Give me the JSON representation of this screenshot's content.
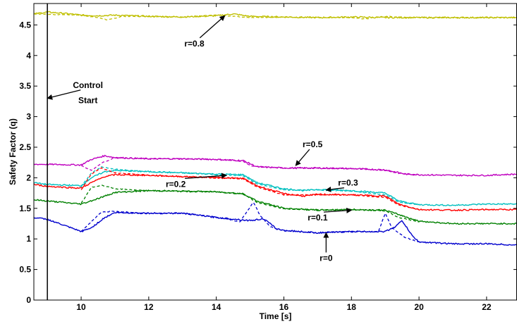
{
  "chart_data": {
    "type": "line",
    "title": "",
    "xlabel": "Time [s]",
    "ylabel": "Safety Factor (q)",
    "xlim": [
      8.6,
      22.9
    ],
    "ylim": [
      0,
      4.85
    ],
    "xticks": [
      10,
      12,
      14,
      16,
      18,
      20,
      22
    ],
    "yticks": [
      0,
      0.5,
      1,
      1.5,
      2,
      2.5,
      3,
      3.5,
      4,
      4.5
    ],
    "ytick_labels": [
      "0",
      "0.5",
      "1",
      "1.5",
      "2",
      "2.5",
      "3",
      "3.5",
      "4",
      "4.5"
    ],
    "grid": false,
    "legend": "none",
    "series": [
      {
        "label": "r=0.8",
        "color": "#bfbf00",
        "solid": [
          [
            8.6,
            4.68
          ],
          [
            9,
            4.71
          ],
          [
            9.5,
            4.69
          ],
          [
            10,
            4.66
          ],
          [
            10.5,
            4.65
          ],
          [
            11,
            4.66
          ],
          [
            12,
            4.64
          ],
          [
            13,
            4.63
          ],
          [
            14,
            4.65
          ],
          [
            14.5,
            4.68
          ],
          [
            15,
            4.64
          ],
          [
            16,
            4.63
          ],
          [
            17,
            4.62
          ],
          [
            18,
            4.63
          ],
          [
            19,
            4.62
          ],
          [
            20,
            4.62
          ],
          [
            21,
            4.62
          ],
          [
            22,
            4.62
          ],
          [
            22.9,
            4.62
          ]
        ],
        "dashed": [
          [
            8.6,
            4.68
          ],
          [
            10,
            4.66
          ],
          [
            10.5,
            4.62
          ],
          [
            10.8,
            4.58
          ],
          [
            11.2,
            4.64
          ],
          [
            12,
            4.64
          ],
          [
            13,
            4.63
          ],
          [
            14,
            4.66
          ],
          [
            14.6,
            4.64
          ],
          [
            15,
            4.62
          ],
          [
            16,
            4.63
          ],
          [
            17,
            4.62
          ],
          [
            18,
            4.62
          ],
          [
            18.4,
            4.6
          ],
          [
            19,
            4.64
          ],
          [
            20,
            4.62
          ],
          [
            22.9,
            4.62
          ]
        ]
      },
      {
        "label": "r=0.5",
        "color": "#bf00bf",
        "solid": [
          [
            8.6,
            2.22
          ],
          [
            9,
            2.22
          ],
          [
            10,
            2.21
          ],
          [
            10.3,
            2.3
          ],
          [
            10.7,
            2.36
          ],
          [
            11,
            2.33
          ],
          [
            12,
            2.31
          ],
          [
            13,
            2.31
          ],
          [
            14,
            2.3
          ],
          [
            14.8,
            2.28
          ],
          [
            15.2,
            2.18
          ],
          [
            16,
            2.16
          ],
          [
            17,
            2.16
          ],
          [
            18,
            2.15
          ],
          [
            19,
            2.13
          ],
          [
            19.6,
            2.06
          ],
          [
            20,
            2.05
          ],
          [
            21,
            2.04
          ],
          [
            22,
            2.04
          ],
          [
            22.9,
            2.06
          ]
        ],
        "dashed": [
          [
            10,
            2.2
          ],
          [
            10.3,
            2.12
          ],
          [
            10.6,
            2.24
          ],
          [
            11,
            2.33
          ],
          [
            12,
            2.31
          ],
          [
            13,
            2.31
          ],
          [
            14,
            2.3
          ],
          [
            14.8,
            2.27
          ],
          [
            15,
            2.2
          ],
          [
            15.2,
            2.18
          ],
          [
            16,
            2.16
          ],
          [
            18,
            2.15
          ],
          [
            19,
            2.12
          ],
          [
            19.4,
            2.07
          ],
          [
            20,
            2.05
          ]
        ]
      },
      {
        "label": "r=0.3",
        "color": "#00bfbf",
        "solid": [
          [
            8.6,
            1.92
          ],
          [
            9,
            1.89
          ],
          [
            10,
            1.87
          ],
          [
            10.3,
            2.0
          ],
          [
            10.7,
            2.1
          ],
          [
            11,
            2.12
          ],
          [
            12,
            2.1
          ],
          [
            13,
            2.08
          ],
          [
            14,
            2.06
          ],
          [
            14.8,
            2.05
          ],
          [
            15.2,
            1.92
          ],
          [
            16,
            1.82
          ],
          [
            16.6,
            1.79
          ],
          [
            17,
            1.81
          ],
          [
            18,
            1.79
          ],
          [
            19,
            1.75
          ],
          [
            19.4,
            1.62
          ],
          [
            20,
            1.56
          ],
          [
            21,
            1.55
          ],
          [
            22,
            1.57
          ],
          [
            22.9,
            1.57
          ]
        ],
        "dashed": [
          [
            10,
            1.85
          ],
          [
            10.3,
            2.08
          ],
          [
            10.6,
            2.18
          ],
          [
            11,
            2.14
          ],
          [
            12,
            2.1
          ],
          [
            13,
            2.08
          ],
          [
            14,
            2.05
          ],
          [
            14.8,
            2.03
          ],
          [
            15.2,
            1.9
          ],
          [
            16,
            1.8
          ],
          [
            17,
            1.8
          ],
          [
            18,
            1.78
          ],
          [
            19,
            1.72
          ],
          [
            19.4,
            1.6
          ],
          [
            20,
            1.56
          ]
        ]
      },
      {
        "label": "r=0.2",
        "color": "#ff0000",
        "solid": [
          [
            8.6,
            1.89
          ],
          [
            9,
            1.86
          ],
          [
            10,
            1.83
          ],
          [
            10.3,
            1.92
          ],
          [
            10.7,
            2.02
          ],
          [
            11,
            2.05
          ],
          [
            12,
            2.04
          ],
          [
            13,
            2.02
          ],
          [
            14,
            2.0
          ],
          [
            14.8,
            1.99
          ],
          [
            15.2,
            1.87
          ],
          [
            16,
            1.74
          ],
          [
            16.6,
            1.7
          ],
          [
            17,
            1.73
          ],
          [
            18,
            1.72
          ],
          [
            19,
            1.7
          ],
          [
            19.4,
            1.57
          ],
          [
            20,
            1.48
          ],
          [
            21,
            1.47
          ],
          [
            22,
            1.48
          ],
          [
            22.9,
            1.48
          ]
        ],
        "dashed": [
          [
            10,
            1.8
          ],
          [
            10.3,
            2.06
          ],
          [
            10.6,
            2.16
          ],
          [
            11,
            2.08
          ],
          [
            12,
            2.04
          ],
          [
            13,
            2.02
          ],
          [
            14,
            2.01
          ],
          [
            14.8,
            1.98
          ],
          [
            15.2,
            1.85
          ],
          [
            16,
            1.72
          ],
          [
            17,
            1.72
          ],
          [
            18,
            1.72
          ],
          [
            19,
            1.68
          ],
          [
            19.4,
            1.55
          ],
          [
            20,
            1.48
          ]
        ]
      },
      {
        "label": "r=0.1",
        "color": "#008000",
        "solid": [
          [
            8.6,
            1.64
          ],
          [
            9,
            1.62
          ],
          [
            10,
            1.57
          ],
          [
            10.5,
            1.66
          ],
          [
            11,
            1.76
          ],
          [
            12,
            1.79
          ],
          [
            13,
            1.78
          ],
          [
            14,
            1.77
          ],
          [
            14.8,
            1.74
          ],
          [
            15.2,
            1.62
          ],
          [
            16,
            1.5
          ],
          [
            17,
            1.47
          ],
          [
            18,
            1.48
          ],
          [
            19,
            1.47
          ],
          [
            19.5,
            1.38
          ],
          [
            20,
            1.29
          ],
          [
            21,
            1.25
          ],
          [
            22,
            1.25
          ],
          [
            22.9,
            1.25
          ]
        ],
        "dashed": [
          [
            10,
            1.58
          ],
          [
            10.3,
            1.84
          ],
          [
            10.6,
            1.88
          ],
          [
            11,
            1.82
          ],
          [
            12,
            1.79
          ],
          [
            13,
            1.78
          ],
          [
            14,
            1.77
          ],
          [
            14.8,
            1.73
          ],
          [
            15.2,
            1.6
          ],
          [
            16,
            1.49
          ],
          [
            17,
            1.48
          ],
          [
            18,
            1.48
          ],
          [
            19,
            1.46
          ],
          [
            19.4,
            1.35
          ],
          [
            20,
            1.28
          ]
        ]
      },
      {
        "label": "r=0",
        "color": "#0000cd",
        "solid": [
          [
            8.6,
            1.35
          ],
          [
            9,
            1.32
          ],
          [
            9.5,
            1.22
          ],
          [
            10,
            1.12
          ],
          [
            10.3,
            1.18
          ],
          [
            10.7,
            1.35
          ],
          [
            11,
            1.43
          ],
          [
            12,
            1.42
          ],
          [
            13,
            1.42
          ],
          [
            14,
            1.35
          ],
          [
            15,
            1.3
          ],
          [
            15.4,
            1.33
          ],
          [
            15.8,
            1.16
          ],
          [
            16,
            1.14
          ],
          [
            17,
            1.1
          ],
          [
            18,
            1.12
          ],
          [
            19,
            1.12
          ],
          [
            19.3,
            1.2
          ],
          [
            19.5,
            1.3
          ],
          [
            19.8,
            1.05
          ],
          [
            20,
            0.95
          ],
          [
            21,
            0.92
          ],
          [
            22,
            0.92
          ],
          [
            22.9,
            0.9
          ]
        ],
        "dashed": [
          [
            10,
            1.12
          ],
          [
            10.3,
            1.28
          ],
          [
            10.6,
            1.44
          ],
          [
            11,
            1.45
          ],
          [
            12,
            1.42
          ],
          [
            13,
            1.42
          ],
          [
            14,
            1.36
          ],
          [
            14.7,
            1.28
          ],
          [
            15.1,
            1.6
          ],
          [
            15.3,
            1.38
          ],
          [
            15.6,
            1.2
          ],
          [
            16,
            1.13
          ],
          [
            17,
            1.1
          ],
          [
            18,
            1.12
          ],
          [
            18.8,
            1.12
          ],
          [
            19.0,
            1.42
          ],
          [
            19.2,
            1.18
          ],
          [
            19.6,
            1.02
          ],
          [
            20,
            0.95
          ]
        ]
      }
    ],
    "annotations": [
      {
        "text": "r=0.8",
        "point": [
          14.25,
          4.65
        ],
        "text_pos": [
          13.35,
          4.15
        ]
      },
      {
        "text": "r=0.5",
        "point": [
          16.35,
          2.2
        ],
        "text_pos": [
          16.85,
          2.5
        ]
      },
      {
        "text": "r=0.3",
        "point": [
          17.25,
          1.8
        ],
        "text_pos": [
          17.9,
          1.87
        ]
      },
      {
        "text": "r=0.2",
        "point": [
          14.3,
          2.04
        ],
        "text_pos": [
          12.8,
          1.85
        ]
      },
      {
        "text": "r=0.1",
        "point": [
          18.0,
          1.47
        ],
        "text_pos": [
          17.0,
          1.3
        ]
      },
      {
        "text": "r=0",
        "point": [
          17.25,
          1.1
        ],
        "text_pos": [
          17.25,
          0.64
        ]
      },
      {
        "text": "Control",
        "point": [
          9.0,
          3.3
        ],
        "text_pos": [
          10.2,
          3.47
        ]
      },
      {
        "text": "Start",
        "point": null,
        "text_pos": [
          10.2,
          3.22
        ]
      }
    ],
    "vline_x": 9.0
  }
}
